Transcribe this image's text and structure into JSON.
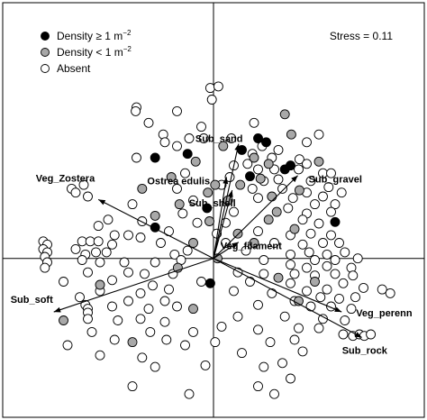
{
  "chart_data": {
    "type": "scatter",
    "title": "",
    "xlabel": "",
    "ylabel": "",
    "xlim": [
      -2.6,
      2.6
    ],
    "ylim": [
      -2.05,
      3.3
    ],
    "grid": false,
    "legend_position": "top-left",
    "stress_label": "Stress = 0.11",
    "legend": [
      {
        "key": "dense",
        "label_main": "Density ≥ 1 m",
        "label_sup": "−2",
        "fill": "#000000"
      },
      {
        "key": "sparse",
        "label_main": "Density < 1 m",
        "label_sup": "−2",
        "fill": "#a8a8a8"
      },
      {
        "key": "absent",
        "label_main": "Absent",
        "label_sup": "",
        "fill": "#ffffff"
      }
    ],
    "vectors": [
      {
        "label": "Sub_sand",
        "x": 0.31,
        "y": 1.48
      },
      {
        "label": "Ostrea edulis",
        "x": 0.16,
        "y": 1.05
      },
      {
        "label": "Sub_shell",
        "x": 0.23,
        "y": 0.88
      },
      {
        "label": "Sub_gravel",
        "x": 1.04,
        "y": 1.07
      },
      {
        "label": "Veg_Zostera",
        "x": -1.42,
        "y": 0.76
      },
      {
        "label": "Veg_filament",
        "x": 0.31,
        "y": 0.21
      },
      {
        "label": "Sub_soft",
        "x": -1.97,
        "y": -0.69
      },
      {
        "label": "Veg_perenn",
        "x": 1.58,
        "y": -0.69
      },
      {
        "label": "Sub_rock",
        "x": 1.83,
        "y": -1.02
      }
    ],
    "points": {
      "dense": [
        [
          0.55,
          1.55
        ],
        [
          0.65,
          1.5
        ],
        [
          -0.72,
          1.3
        ],
        [
          -0.32,
          1.35
        ],
        [
          0.35,
          1.4
        ],
        [
          0.45,
          1.06
        ],
        [
          0.88,
          1.15
        ],
        [
          0.95,
          1.2
        ],
        [
          -0.08,
          0.65
        ],
        [
          -0.72,
          0.4
        ],
        [
          1.5,
          0.47
        ],
        [
          -0.04,
          -0.32
        ]
      ],
      "sparse": [
        [
          0.88,
          1.86
        ],
        [
          0.12,
          1.45
        ],
        [
          0.96,
          1.6
        ],
        [
          0.5,
          1.3
        ],
        [
          0.68,
          1.22
        ],
        [
          -0.22,
          1.25
        ],
        [
          1.3,
          1.25
        ],
        [
          -0.52,
          1.05
        ],
        [
          0.02,
          0.95
        ],
        [
          0.33,
          0.95
        ],
        [
          0.58,
          1.03
        ],
        [
          -0.88,
          0.9
        ],
        [
          -0.07,
          0.85
        ],
        [
          0.72,
          0.8
        ],
        [
          1.06,
          0.88
        ],
        [
          -0.42,
          0.7
        ],
        [
          0.18,
          0.75
        ],
        [
          0.78,
          0.6
        ],
        [
          -0.72,
          0.55
        ],
        [
          -0.05,
          0.48
        ],
        [
          0.68,
          0.5
        ],
        [
          0.3,
          0.32
        ],
        [
          1.0,
          0.38
        ],
        [
          -0.25,
          0.2
        ],
        [
          0.5,
          0.2
        ],
        [
          0.05,
          0.0
        ],
        [
          -1.4,
          -0.34
        ],
        [
          -0.44,
          -0.12
        ],
        [
          -0.25,
          -0.65
        ],
        [
          0.8,
          -0.25
        ],
        [
          1.25,
          -0.3
        ],
        [
          -1.85,
          -0.8
        ],
        [
          -1.0,
          -1.08
        ],
        [
          1.05,
          -0.55
        ]
      ],
      "absent": [
        [
          -0.04,
          2.2
        ],
        [
          0.06,
          2.22
        ],
        [
          -0.02,
          2.05
        ],
        [
          -0.95,
          1.95
        ],
        [
          -0.96,
          1.9
        ],
        [
          -0.45,
          1.9
        ],
        [
          -0.8,
          1.75
        ],
        [
          -0.62,
          1.6
        ],
        [
          -0.15,
          1.7
        ],
        [
          -0.6,
          1.5
        ],
        [
          -0.95,
          1.3
        ],
        [
          -0.3,
          1.55
        ],
        [
          0.5,
          1.75
        ],
        [
          1.15,
          1.5
        ],
        [
          1.3,
          1.6
        ],
        [
          0.48,
          1.35
        ],
        [
          0.6,
          1.45
        ],
        [
          0.72,
          1.3
        ],
        [
          0.8,
          1.4
        ],
        [
          1.06,
          1.28
        ],
        [
          1.15,
          1.22
        ],
        [
          -0.45,
          1.45
        ],
        [
          -0.12,
          1.55
        ],
        [
          0.22,
          1.55
        ],
        [
          0.25,
          1.2
        ],
        [
          0.42,
          1.22
        ],
        [
          0.55,
          1.15
        ],
        [
          0.75,
          1.15
        ],
        [
          1.05,
          1.15
        ],
        [
          1.35,
          1.1
        ],
        [
          1.45,
          1.1
        ],
        [
          0.2,
          1.05
        ],
        [
          -0.35,
          1.1
        ],
        [
          0.62,
          1.0
        ],
        [
          0.8,
          1.02
        ],
        [
          1.2,
          1.0
        ],
        [
          1.42,
          0.92
        ],
        [
          1.58,
          0.85
        ],
        [
          -0.45,
          0.9
        ],
        [
          0.1,
          0.95
        ],
        [
          0.48,
          0.9
        ],
        [
          0.85,
          0.9
        ],
        [
          1.15,
          0.85
        ],
        [
          1.35,
          0.8
        ],
        [
          -0.25,
          0.75
        ],
        [
          0.55,
          0.78
        ],
        [
          0.98,
          0.78
        ],
        [
          1.25,
          0.7
        ],
        [
          1.5,
          0.7
        ],
        [
          -1.75,
          0.9
        ],
        [
          -1.6,
          0.95
        ],
        [
          -1.55,
          0.8
        ],
        [
          -1.7,
          0.85
        ],
        [
          -1.0,
          0.7
        ],
        [
          -0.38,
          0.58
        ],
        [
          0.25,
          0.6
        ],
        [
          0.92,
          0.65
        ],
        [
          1.15,
          0.58
        ],
        [
          1.45,
          0.6
        ],
        [
          -1.3,
          0.5
        ],
        [
          -0.88,
          0.48
        ],
        [
          -0.2,
          0.46
        ],
        [
          0.15,
          0.46
        ],
        [
          1.1,
          0.5
        ],
        [
          1.3,
          0.45
        ],
        [
          -1.42,
          0.42
        ],
        [
          -0.55,
          0.35
        ],
        [
          0.04,
          0.32
        ],
        [
          0.55,
          0.35
        ],
        [
          0.95,
          0.3
        ],
        [
          1.2,
          0.32
        ],
        [
          1.45,
          0.3
        ],
        [
          -1.22,
          0.3
        ],
        [
          -1.05,
          0.3
        ],
        [
          -0.9,
          0.27
        ],
        [
          -0.65,
          0.2
        ],
        [
          0.15,
          0.2
        ],
        [
          0.75,
          0.2
        ],
        [
          1.1,
          0.18
        ],
        [
          1.35,
          0.2
        ],
        [
          1.55,
          0.2
        ],
        [
          -2.1,
          0.22
        ],
        [
          -2.05,
          0.18
        ],
        [
          -1.62,
          0.22
        ],
        [
          -1.52,
          0.22
        ],
        [
          -1.42,
          0.22
        ],
        [
          -1.25,
          0.18
        ],
        [
          -0.32,
          0.1
        ],
        [
          0.4,
          0.1
        ],
        [
          0.95,
          0.05
        ],
        [
          1.18,
          0.08
        ],
        [
          1.4,
          0.05
        ],
        [
          1.62,
          0.08
        ],
        [
          -2.1,
          0.12
        ],
        [
          -2.05,
          0.08
        ],
        [
          -1.7,
          0.12
        ],
        [
          -1.58,
          0.05
        ],
        [
          -1.45,
          0.08
        ],
        [
          -1.32,
          0.08
        ],
        [
          -0.48,
          0.05
        ],
        [
          0.62,
          -0.02
        ],
        [
          1.25,
          -0.02
        ],
        [
          1.5,
          -0.02
        ],
        [
          1.78,
          0.0
        ],
        [
          -2.08,
          0.02
        ],
        [
          -2.05,
          -0.05
        ],
        [
          -1.62,
          -0.02
        ],
        [
          -1.4,
          -0.05
        ],
        [
          -1.1,
          -0.05
        ],
        [
          -0.72,
          -0.05
        ],
        [
          -0.4,
          -0.02
        ],
        [
          0.95,
          -0.08
        ],
        [
          1.15,
          -0.12
        ],
        [
          1.4,
          -0.1
        ],
        [
          1.7,
          -0.12
        ],
        [
          -2.08,
          -0.12
        ],
        [
          -1.55,
          -0.18
        ],
        [
          -1.05,
          -0.18
        ],
        [
          -0.85,
          -0.2
        ],
        [
          -0.5,
          -0.2
        ],
        [
          0.3,
          -0.18
        ],
        [
          0.62,
          -0.2
        ],
        [
          1.0,
          -0.2
        ],
        [
          1.25,
          -0.22
        ],
        [
          1.5,
          -0.2
        ],
        [
          1.72,
          -0.22
        ],
        [
          -1.85,
          -0.3
        ],
        [
          -1.25,
          -0.28
        ],
        [
          -0.75,
          -0.35
        ],
        [
          -0.15,
          -0.3
        ],
        [
          0.45,
          -0.3
        ],
        [
          0.95,
          -0.32
        ],
        [
          1.6,
          -0.32
        ],
        [
          -1.4,
          -0.42
        ],
        [
          -0.9,
          -0.45
        ],
        [
          -0.55,
          -0.4
        ],
        [
          0.25,
          -0.42
        ],
        [
          0.72,
          -0.45
        ],
        [
          1.15,
          -0.42
        ],
        [
          1.4,
          -0.4
        ],
        [
          1.85,
          -0.38
        ],
        [
          2.08,
          -0.4
        ],
        [
          -1.65,
          -0.5
        ],
        [
          -1.05,
          -0.55
        ],
        [
          -0.6,
          -0.55
        ],
        [
          1.0,
          -0.55
        ],
        [
          1.32,
          -0.5
        ],
        [
          1.55,
          -0.52
        ],
        [
          1.75,
          -0.5
        ],
        [
          -1.25,
          -0.62
        ],
        [
          -1.58,
          -0.6
        ],
        [
          -1.55,
          -0.65
        ],
        [
          -1.55,
          -0.7
        ],
        [
          -0.8,
          -0.65
        ],
        [
          -0.45,
          -0.62
        ],
        [
          0.55,
          -0.6
        ],
        [
          1.2,
          -0.62
        ],
        [
          1.45,
          -0.62
        ],
        [
          1.7,
          -0.65
        ],
        [
          2.18,
          -0.45
        ],
        [
          -1.55,
          -0.78
        ],
        [
          -1.18,
          -0.8
        ],
        [
          -0.9,
          -0.78
        ],
        [
          0.3,
          -0.75
        ],
        [
          0.88,
          -0.75
        ],
        [
          1.35,
          -0.78
        ],
        [
          1.62,
          -0.8
        ],
        [
          -0.6,
          -0.82
        ],
        [
          0.1,
          -0.88
        ],
        [
          1.05,
          -0.9
        ],
        [
          1.3,
          -0.9
        ],
        [
          -1.5,
          -0.95
        ],
        [
          -0.78,
          -0.95
        ],
        [
          -0.25,
          -0.95
        ],
        [
          0.55,
          -0.92
        ],
        [
          1.6,
          -0.98
        ],
        [
          1.72,
          -1.0
        ],
        [
          1.8,
          -0.98
        ],
        [
          1.86,
          -1.0
        ],
        [
          1.94,
          -0.98
        ],
        [
          -1.22,
          -1.05
        ],
        [
          -0.58,
          -1.05
        ],
        [
          0.02,
          -1.08
        ],
        [
          0.7,
          -1.08
        ],
        [
          1.0,
          -1.05
        ],
        [
          -1.8,
          -1.12
        ],
        [
          -0.35,
          -1.12
        ],
        [
          -1.4,
          -1.25
        ],
        [
          -0.88,
          -1.28
        ],
        [
          0.35,
          -1.22
        ],
        [
          1.1,
          -1.2
        ],
        [
          -0.72,
          -1.4
        ],
        [
          -0.1,
          -1.38
        ],
        [
          0.62,
          -1.4
        ],
        [
          0.85,
          -1.35
        ],
        [
          0.95,
          -1.55
        ],
        [
          -1.0,
          -1.65
        ],
        [
          0.55,
          -1.65
        ],
        [
          0.75,
          -1.75
        ],
        [
          -0.3,
          -1.75
        ]
      ]
    }
  }
}
